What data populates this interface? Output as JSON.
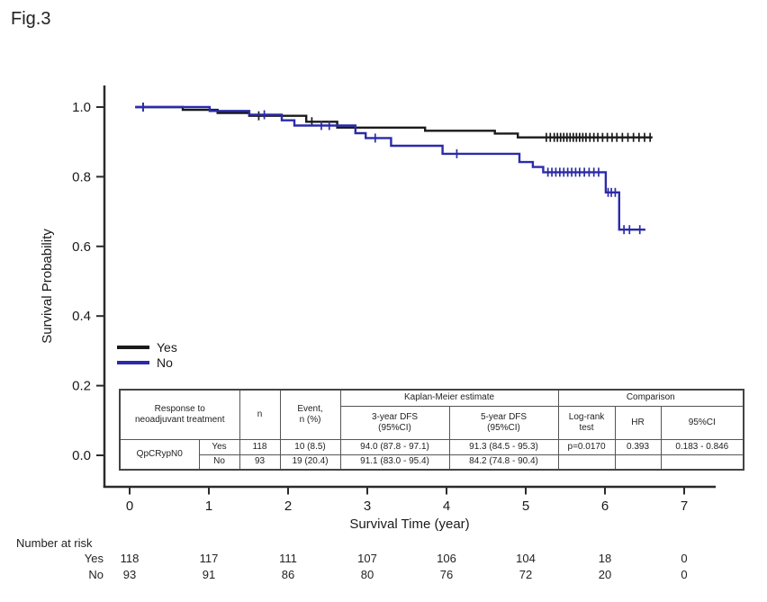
{
  "figure_label": "Fig.3",
  "chart_data": {
    "type": "line",
    "subtype": "kaplan-meier-step",
    "title": "",
    "xlabel": "Survival Time (year)",
    "ylabel": "Survival Probability",
    "xticks": [
      0,
      1,
      2,
      3,
      4,
      5,
      6,
      7
    ],
    "yticks": [
      "1.0",
      "0.8",
      "0.6",
      "0.4",
      "0.2",
      "0.0"
    ],
    "xlim": [
      0,
      7.4
    ],
    "ylim": [
      0,
      1.05
    ],
    "grid": "off",
    "axis_color": "#2b2b2b",
    "legend_position": "left-middle",
    "legend": [
      {
        "label": "Yes",
        "color": "#1a1a1a"
      },
      {
        "label": "No",
        "color": "#2b2baa"
      }
    ],
    "series": [
      {
        "name": "Yes",
        "color": "#1a1a1a",
        "steps": [
          [
            0.07,
            1.0
          ],
          [
            0.67,
            0.992
          ],
          [
            1.11,
            0.983
          ],
          [
            1.51,
            0.975
          ],
          [
            2.23,
            0.958
          ],
          [
            2.62,
            0.941
          ],
          [
            3.73,
            0.932
          ],
          [
            4.61,
            0.924
          ],
          [
            4.9,
            0.913
          ],
          [
            6.6,
            0.913
          ]
        ],
        "censors": [
          [
            0.17,
            1.0
          ],
          [
            1.63,
            0.975
          ],
          [
            2.3,
            0.958
          ],
          [
            5.26,
            0.913
          ],
          [
            5.31,
            0.913
          ],
          [
            5.36,
            0.913
          ],
          [
            5.4,
            0.913
          ],
          [
            5.44,
            0.913
          ],
          [
            5.48,
            0.913
          ],
          [
            5.52,
            0.913
          ],
          [
            5.56,
            0.913
          ],
          [
            5.6,
            0.913
          ],
          [
            5.64,
            0.913
          ],
          [
            5.68,
            0.913
          ],
          [
            5.72,
            0.913
          ],
          [
            5.76,
            0.913
          ],
          [
            5.81,
            0.913
          ],
          [
            5.86,
            0.913
          ],
          [
            5.91,
            0.913
          ],
          [
            5.97,
            0.913
          ],
          [
            6.03,
            0.913
          ],
          [
            6.09,
            0.913
          ],
          [
            6.15,
            0.913
          ],
          [
            6.22,
            0.913
          ],
          [
            6.29,
            0.913
          ],
          [
            6.36,
            0.913
          ],
          [
            6.43,
            0.913
          ],
          [
            6.5,
            0.913
          ],
          [
            6.57,
            0.913
          ]
        ]
      },
      {
        "name": "No",
        "color": "#2b2baa",
        "steps": [
          [
            0.07,
            1.0
          ],
          [
            1.01,
            0.989
          ],
          [
            1.51,
            0.978
          ],
          [
            1.92,
            0.962
          ],
          [
            2.08,
            0.947
          ],
          [
            2.85,
            0.925
          ],
          [
            2.98,
            0.911
          ],
          [
            3.3,
            0.889
          ],
          [
            3.95,
            0.866
          ],
          [
            4.92,
            0.842
          ],
          [
            5.09,
            0.828
          ],
          [
            5.22,
            0.813
          ],
          [
            6.01,
            0.755
          ],
          [
            6.18,
            0.648
          ],
          [
            6.51,
            0.648
          ]
        ],
        "censors": [
          [
            0.17,
            1.0
          ],
          [
            1.7,
            0.978
          ],
          [
            2.42,
            0.947
          ],
          [
            2.52,
            0.947
          ],
          [
            3.1,
            0.911
          ],
          [
            4.13,
            0.866
          ],
          [
            5.28,
            0.813
          ],
          [
            5.33,
            0.813
          ],
          [
            5.38,
            0.813
          ],
          [
            5.43,
            0.813
          ],
          [
            5.48,
            0.813
          ],
          [
            5.53,
            0.813
          ],
          [
            5.58,
            0.813
          ],
          [
            5.63,
            0.813
          ],
          [
            5.68,
            0.813
          ],
          [
            5.74,
            0.813
          ],
          [
            5.8,
            0.813
          ],
          [
            5.86,
            0.813
          ],
          [
            5.92,
            0.813
          ],
          [
            6.04,
            0.755
          ],
          [
            6.08,
            0.755
          ],
          [
            6.13,
            0.755
          ],
          [
            6.24,
            0.648
          ],
          [
            6.31,
            0.648
          ],
          [
            6.44,
            0.648
          ]
        ]
      }
    ]
  },
  "stats_table": {
    "col_response": "Response to\nneoadjuvant treatment",
    "col_n": "n",
    "col_event": "Event,\nn (%)",
    "group_km": "Kaplan-Meier estimate",
    "col_3yr": "3-year DFS\n(95%CI)",
    "col_5yr": "5-year DFS\n(95%CI)",
    "group_comparison": "Comparison",
    "col_logrank": "Log-rank\ntest",
    "col_hr": "HR",
    "col_ci": "95%CI",
    "group_row_label": "QpCRypN0",
    "rows": [
      {
        "response": "Yes",
        "n": "118",
        "event": "10 (8.5)",
        "dfs3": "94.0 (87.8 - 97.1)",
        "dfs5": "91.3 (84.5 - 95.3)",
        "logrank": "p=0.0170",
        "hr": "0.393",
        "ci": "0.183 - 0.846"
      },
      {
        "response": "No",
        "n": "93",
        "event": "19 (20.4)",
        "dfs3": "91.1 (83.0 - 95.4)",
        "dfs5": "84.2 (74.8 - 90.4)",
        "logrank": "",
        "hr": "",
        "ci": ""
      }
    ]
  },
  "number_at_risk": {
    "title": "Number at risk",
    "rows": [
      {
        "label": "Yes",
        "values": [
          "118",
          "117",
          "111",
          "107",
          "106",
          "104",
          "18",
          "0"
        ]
      },
      {
        "label": "No",
        "values": [
          "93",
          "91",
          "86",
          "80",
          "76",
          "72",
          "20",
          "0"
        ]
      }
    ]
  }
}
